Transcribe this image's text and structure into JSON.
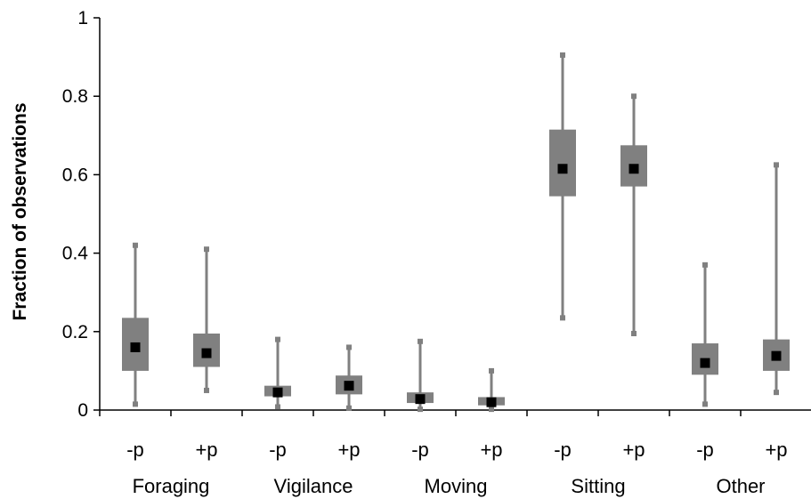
{
  "chart_data": {
    "type": "boxplot",
    "ylabel": "Fraction of observations",
    "xlabel": "",
    "ylim": [
      0,
      1
    ],
    "yticks": [
      "0",
      "0.2",
      "0.4",
      "0.6",
      "0.8",
      "1"
    ],
    "grid": false,
    "legend": "none",
    "colors": {
      "box": "#808080",
      "whisker": "#808080",
      "median": "#000000",
      "axis": "#000000"
    },
    "groups": [
      {
        "name": "Foraging",
        "boxes": [
          {
            "label": "-p",
            "min": 0.015,
            "q1": 0.1,
            "median": 0.16,
            "q3": 0.235,
            "max": 0.42
          },
          {
            "label": "+p",
            "min": 0.05,
            "q1": 0.11,
            "median": 0.145,
            "q3": 0.195,
            "max": 0.41
          }
        ]
      },
      {
        "name": "Vigilance",
        "boxes": [
          {
            "label": "-p",
            "min": 0.008,
            "q1": 0.035,
            "median": 0.045,
            "q3": 0.062,
            "max": 0.18
          },
          {
            "label": "+p",
            "min": 0.005,
            "q1": 0.04,
            "median": 0.062,
            "q3": 0.088,
            "max": 0.16
          }
        ]
      },
      {
        "name": "Moving",
        "boxes": [
          {
            "label": "-p",
            "min": 0.002,
            "q1": 0.018,
            "median": 0.028,
            "q3": 0.045,
            "max": 0.175
          },
          {
            "label": "+p",
            "min": 0.002,
            "q1": 0.012,
            "median": 0.02,
            "q3": 0.033,
            "max": 0.1
          }
        ]
      },
      {
        "name": "Sitting",
        "boxes": [
          {
            "label": "-p",
            "min": 0.235,
            "q1": 0.545,
            "median": 0.615,
            "q3": 0.715,
            "max": 0.905
          },
          {
            "label": "+p",
            "min": 0.195,
            "q1": 0.57,
            "median": 0.615,
            "q3": 0.675,
            "max": 0.8
          }
        ]
      },
      {
        "name": "Other",
        "boxes": [
          {
            "label": "-p",
            "min": 0.015,
            "q1": 0.09,
            "median": 0.12,
            "q3": 0.17,
            "max": 0.37
          },
          {
            "label": "+p",
            "min": 0.045,
            "q1": 0.1,
            "median": 0.138,
            "q3": 0.18,
            "max": 0.625
          }
        ]
      }
    ]
  }
}
